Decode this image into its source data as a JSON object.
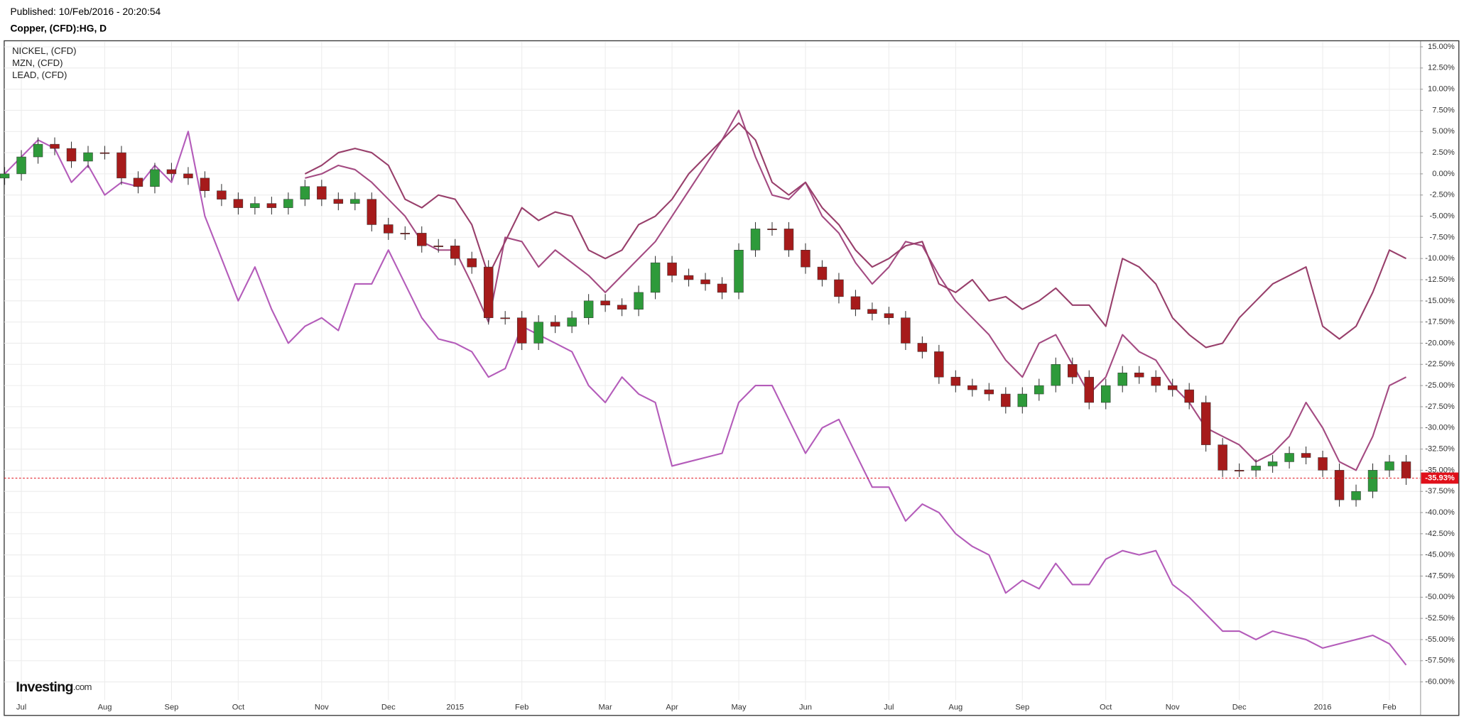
{
  "chart_data": {
    "type": "candlestick",
    "published": "Published: 10/Feb/2016 - 20:20:54",
    "title": "Copper, (CFD):HG, D",
    "logo": "Investing",
    "logo_suffix": ".com",
    "categories": [
      null,
      "Jul",
      null,
      null,
      null,
      null,
      "Aug",
      null,
      null,
      null,
      "Sep",
      null,
      null,
      null,
      "Oct",
      null,
      null,
      null,
      null,
      "Nov",
      null,
      null,
      null,
      "Dec",
      null,
      null,
      null,
      "2015",
      null,
      null,
      null,
      "Feb",
      null,
      null,
      null,
      null,
      "Mar",
      null,
      null,
      null,
      "Apr",
      null,
      null,
      null,
      "May",
      null,
      null,
      null,
      "Jun",
      null,
      null,
      null,
      null,
      "Jul",
      null,
      null,
      null,
      "Aug",
      null,
      null,
      null,
      "Sep",
      null,
      null,
      null,
      null,
      "Oct",
      null,
      null,
      null,
      "Nov",
      null,
      null,
      null,
      "Dec",
      null,
      null,
      null,
      null,
      "2016",
      null,
      null,
      null,
      "Feb",
      null
    ],
    "open": [
      -0.5,
      0,
      2,
      3.5,
      3,
      1.5,
      2.5,
      2.5,
      -0.5,
      -1.5,
      0.5,
      0,
      -0.5,
      -2,
      -3,
      -4,
      -3.5,
      -4,
      -3,
      -1.5,
      -3,
      -3.5,
      -3,
      -6,
      -7,
      -7,
      -8.5,
      -8.5,
      -10,
      -11,
      -17,
      -17,
      -20,
      -17.5,
      -18,
      -17,
      -15,
      -15.5,
      -16,
      -14,
      -10.5,
      -12,
      -12.5,
      -13,
      -14,
      -9,
      -6.5,
      -6.5,
      -9,
      -11,
      -12.5,
      -14.5,
      -16,
      -16.5,
      -17,
      -20,
      -21,
      -24,
      -25,
      -25.5,
      -26,
      -27.5,
      -26,
      -25,
      -22.5,
      -24,
      -27,
      -25,
      -23.5,
      -24,
      -25,
      -25.5,
      -27,
      -32,
      -35,
      -35,
      -34.5,
      -34,
      -33,
      -33.5,
      -35,
      -38.5,
      -37.5,
      -35,
      -34
    ],
    "high": [
      0.8,
      2.8,
      4.3,
      4.3,
      3.8,
      3.3,
      3.3,
      3.3,
      0.3,
      1.3,
      1.3,
      0.8,
      0.3,
      -1.2,
      -2.2,
      -2.7,
      -2.7,
      -2.2,
      -0.7,
      -0.7,
      -2.2,
      -2.2,
      -2.2,
      -5.2,
      -6.2,
      -6.2,
      -7.7,
      -7.7,
      -9.2,
      -10.2,
      -16.2,
      -16.2,
      -16.7,
      -16.7,
      -16.2,
      -14.2,
      -14.2,
      -14.7,
      -13.2,
      -9.7,
      -9.7,
      -11.2,
      -11.7,
      -12.2,
      -8.2,
      -5.7,
      -5.7,
      -5.7,
      -8.2,
      -10.2,
      -11.7,
      -13.7,
      -15.2,
      -15.7,
      -16.2,
      -19.2,
      -20.2,
      -23.2,
      -24.2,
      -24.7,
      -25.2,
      -25.2,
      -24.2,
      -21.7,
      -21.7,
      -23.2,
      -24.2,
      -22.7,
      -22.7,
      -23.2,
      -24.2,
      -24.7,
      -26.2,
      -31.2,
      -34.2,
      -33.7,
      -33.2,
      -32.2,
      -32.2,
      -32.7,
      -34.2,
      -36.7,
      -34.2,
      -33.2,
      -33.2
    ],
    "low": [
      -1.3,
      -0.8,
      1.2,
      2.2,
      0.7,
      0.7,
      1.7,
      -1.3,
      -2.3,
      -2.3,
      -0.8,
      -1.3,
      -2.8,
      -3.8,
      -4.8,
      -4.8,
      -4.8,
      -4.8,
      -3.8,
      -3.8,
      -4.3,
      -4.3,
      -6.8,
      -7.8,
      -7.8,
      -9.3,
      -9.3,
      -10.8,
      -11.8,
      -17.8,
      -17.8,
      -20.8,
      -20.8,
      -18.8,
      -18.8,
      -17.8,
      -16.3,
      -16.8,
      -16.8,
      -14.8,
      -12.8,
      -13.3,
      -13.8,
      -14.8,
      -14.8,
      -9.8,
      -7.3,
      -9.8,
      -11.8,
      -13.3,
      -15.3,
      -16.8,
      -17.3,
      -17.8,
      -20.8,
      -21.8,
      -24.8,
      -25.8,
      -26.3,
      -26.8,
      -28.3,
      -28.3,
      -26.8,
      -25.8,
      -24.8,
      -27.8,
      -27.8,
      -25.8,
      -24.8,
      -25.8,
      -26.3,
      -27.8,
      -32.8,
      -35.8,
      -35.8,
      -35.8,
      -35.3,
      -34.8,
      -34.3,
      -35.8,
      -39.3,
      -39.3,
      -38.3,
      -35.8,
      -36.73
    ],
    "close": [
      0,
      2,
      3.5,
      3,
      1.5,
      2.5,
      2.5,
      -0.5,
      -1.5,
      0.5,
      0,
      -0.5,
      -2,
      -3,
      -4,
      -3.5,
      -4,
      -3,
      -1.5,
      -3,
      -3.5,
      -3,
      -6,
      -7,
      -7,
      -8.5,
      -8.5,
      -10,
      -11,
      -17,
      -17,
      -20,
      -17.5,
      -18,
      -17,
      -15,
      -15.5,
      -16,
      -14,
      -10.5,
      -12,
      -12.5,
      -13,
      -14,
      -9,
      -6.5,
      -6.5,
      -9,
      -11,
      -12.5,
      -14.5,
      -16,
      -16.5,
      -17,
      -20,
      -21,
      -24,
      -25,
      -25.5,
      -26,
      -27.5,
      -26,
      -25,
      -22.5,
      -24,
      -27,
      -25,
      -23.5,
      -24,
      -25,
      -25.5,
      -27,
      -32,
      -35,
      -35,
      -34.5,
      -34,
      -33,
      -33.5,
      -35,
      -38.5,
      -37.5,
      -35,
      -34,
      -35.93
    ],
    "up_color": "#2e9a3a",
    "down_color": "#a61b1b",
    "last_label": "-35.93%",
    "last_color": "#e0101a",
    "series": [
      {
        "name": "NICKEL,  (CFD)",
        "color": "#b45cba",
        "values": [
          0,
          2,
          4,
          3,
          -1,
          1,
          -2.5,
          -1,
          -1.5,
          1,
          -1,
          5,
          -5,
          -10,
          -15,
          -11,
          -16,
          -20,
          -18,
          -17,
          -18.5,
          -13,
          -13,
          -9,
          -13,
          -17,
          -19.5,
          -20,
          -21,
          -24,
          -23,
          -18,
          -19,
          -20,
          -21,
          -25,
          -27,
          -24,
          -26,
          -27,
          -34.5,
          -34,
          -33.5,
          -33,
          -27,
          -25,
          -25,
          -29,
          -33,
          -30,
          -29,
          -33,
          -37,
          -37,
          -41,
          -39,
          -40,
          -42.5,
          -44,
          -45,
          -49.5,
          -48,
          -49,
          -46,
          -48.5,
          -48.5,
          -45.5,
          -44.5,
          -45,
          -44.5,
          -48.5,
          -50,
          -52,
          -54,
          -54,
          -55,
          -54,
          -54.5,
          -55,
          -56,
          -55.5,
          -55,
          -54.5,
          -55.5,
          -58
        ]
      },
      {
        "name": "MZN,  (CFD)",
        "color": "#a44b82",
        "values": [
          null,
          null,
          null,
          null,
          null,
          null,
          null,
          null,
          null,
          null,
          null,
          null,
          null,
          null,
          null,
          null,
          null,
          null,
          -0.5,
          0,
          1,
          0.5,
          -1,
          -3,
          -5,
          -8,
          -9,
          -9,
          -13,
          -17.5,
          -7.5,
          -8,
          -11,
          -9,
          -10.5,
          -12,
          -14,
          -12,
          -10,
          -8,
          -5,
          -2,
          1,
          4,
          7.5,
          2,
          -2.5,
          -3,
          -1,
          -5,
          -7,
          -10.5,
          -13,
          -11,
          -8,
          -8.5,
          -12,
          -15,
          -17,
          -19,
          -22,
          -24,
          -20,
          -19,
          -22.5,
          -26,
          -24,
          -19,
          -21,
          -22,
          -25,
          -27,
          -30,
          -31,
          -32,
          -34,
          -33,
          -31,
          -27,
          -30,
          -34,
          -35,
          -31,
          -25,
          -24
        ]
      },
      {
        "name": "LEAD,  (CFD)",
        "color": "#983f6b",
        "values": [
          null,
          null,
          null,
          null,
          null,
          null,
          null,
          null,
          null,
          null,
          null,
          null,
          null,
          null,
          null,
          null,
          null,
          null,
          0,
          1,
          2.5,
          3,
          2.5,
          1,
          -3,
          -4,
          -2.5,
          -3,
          -6,
          -12,
          -8,
          -4,
          -5.5,
          -4.5,
          -5,
          -9,
          -10,
          -9,
          -6,
          -5,
          -3,
          0,
          2,
          4,
          6,
          4,
          -1,
          -2.5,
          -1,
          -4,
          -6,
          -9,
          -11,
          -10,
          -8.5,
          -8,
          -13,
          -14,
          -12.5,
          -15,
          -14.5,
          -16,
          -15,
          -13.5,
          -15.5,
          -15.5,
          -18,
          -10,
          -11,
          -13,
          -17,
          -19,
          -20.5,
          -20,
          -17,
          -15,
          -13,
          -12,
          -11,
          -18,
          -19.5,
          -18,
          -14,
          -9,
          -10
        ]
      }
    ],
    "ylim": [
      -63.9,
      15.66
    ],
    "yticks": [
      {
        "value": 15,
        "label": "15.00%"
      },
      {
        "value": 12.5,
        "label": "12.50%"
      },
      {
        "value": 10,
        "label": "10.00%"
      },
      {
        "value": 7.5,
        "label": "7.50%"
      },
      {
        "value": 5,
        "label": "5.00%"
      },
      {
        "value": 2.5,
        "label": "2.50%"
      },
      {
        "value": 0,
        "label": "0.00%"
      },
      {
        "value": -2.5,
        "label": "-2.50%"
      },
      {
        "value": -5,
        "label": "-5.00%"
      },
      {
        "value": -7.5,
        "label": "-7.50%"
      },
      {
        "value": -10,
        "label": "-10.00%"
      },
      {
        "value": -12.5,
        "label": "-12.50%"
      },
      {
        "value": -15,
        "label": "-15.00%"
      },
      {
        "value": -17.5,
        "label": "-17.50%"
      },
      {
        "value": -20,
        "label": "-20.00%"
      },
      {
        "value": -22.5,
        "label": "-22.50%"
      },
      {
        "value": -25,
        "label": "-25.00%"
      },
      {
        "value": -27.5,
        "label": "-27.50%"
      },
      {
        "value": -30,
        "label": "-30.00%"
      },
      {
        "value": -32.5,
        "label": "-32.50%"
      },
      {
        "value": -35,
        "label": "-35.00%"
      },
      {
        "value": -37.5,
        "label": "-37.50%"
      },
      {
        "value": -40,
        "label": "-40.00%"
      },
      {
        "value": -42.5,
        "label": "-42.50%"
      },
      {
        "value": -45,
        "label": "-45.00%"
      },
      {
        "value": -47.5,
        "label": "-47.50%"
      },
      {
        "value": -50,
        "label": "-50.00%"
      },
      {
        "value": -52.5,
        "label": "-52.50%"
      },
      {
        "value": -55,
        "label": "-55.00%"
      },
      {
        "value": -57.5,
        "label": "-57.50%"
      },
      {
        "value": -60,
        "label": "-60.00%"
      }
    ],
    "grid": true
  }
}
